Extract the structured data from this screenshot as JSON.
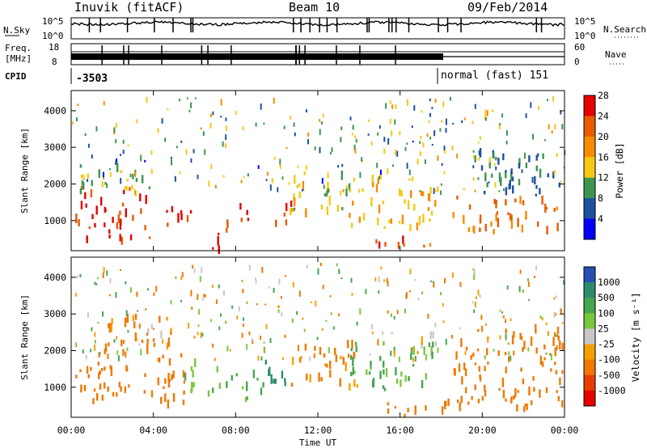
{
  "header": {
    "title": "Inuvik (fitACF)",
    "beam": "Beam 10",
    "date": "09/Feb/2014"
  },
  "top_panels": {
    "nsky_label": "N.Sky",
    "nsearch_label": "N.Search",
    "noise_ticks_left": [
      "10^5",
      "10^0"
    ],
    "noise_ticks_right": [
      "10^5",
      "10^0"
    ],
    "freq_label_1": "Freq.",
    "freq_label_2": "[MHz]",
    "freq_ticks": [
      "18",
      "8"
    ],
    "nave_label": "Nave",
    "nave_ticks": [
      "60",
      "0"
    ],
    "cpid_label": "CPID",
    "cpid_value_1": "-3503",
    "cpid_value_2": "normal (fast) 151"
  },
  "x_axis": {
    "label": "Time UT",
    "ticks": [
      "00:00",
      "04:00",
      "08:00",
      "12:00",
      "16:00",
      "20:00",
      "00:00"
    ]
  },
  "power_panel": {
    "ylabel": "Slant Range [km]",
    "yticks": [
      "1000",
      "2000",
      "3000",
      "4000"
    ],
    "colorbar_label": "Power [dB]",
    "colorbar_ticks": [
      "4",
      "8",
      "12",
      "16",
      "20",
      "24",
      "28"
    ],
    "colors": [
      "#0000ff",
      "#1e50a0",
      "#3c9650",
      "#f5c814",
      "#f58c00",
      "#e85a00",
      "#e60000"
    ]
  },
  "velocity_panel": {
    "ylabel": "Slant Range [km]",
    "yticks": [
      "1000",
      "2000",
      "3000",
      "4000"
    ],
    "colorbar_label": "Velocity [m s⁻¹]",
    "colorbar_ticks": [
      "1000",
      "500",
      "100",
      "25",
      "-25",
      "-100",
      "-500",
      "-1000"
    ],
    "colors": [
      "#2850b4",
      "#2e8c6e",
      "#46a550",
      "#78c83c",
      "#c8c8c8",
      "#f5a000",
      "#f07800",
      "#e83c00",
      "#e60000"
    ]
  },
  "chart_data": {
    "type": "heatmap",
    "title": "Inuvik (fitACF)",
    "subtitle": "Beam 10",
    "xlabel": "Time UT",
    "ylabel": "Slant Range [km]",
    "xlim": [
      0,
      24
    ],
    "ylim": [
      180,
      4550
    ],
    "x_ticks": [
      "00:00",
      "04:00",
      "08:00",
      "12:00",
      "16:00",
      "20:00",
      "00:00"
    ],
    "y_ticks": [
      1000,
      2000,
      3000,
      4000
    ],
    "power_colorbar": {
      "label": "Power [dB]",
      "ticks": [
        4,
        8,
        12,
        16,
        20,
        24,
        28
      ]
    },
    "velocity_colorbar": {
      "label": "Velocity [m s⁻¹]",
      "ticks": [
        1000,
        500,
        100,
        25,
        -25,
        -100,
        -500,
        -1000
      ]
    },
    "power_regions": [
      {
        "t0": 0.2,
        "t1": 3.8,
        "r0": 450,
        "r1": 1900,
        "p": 26
      },
      {
        "t0": 0.2,
        "t1": 3.8,
        "r0": 1800,
        "r1": 2500,
        "p": 14
      },
      {
        "t0": 4.5,
        "t1": 5.8,
        "r0": 600,
        "r1": 1500,
        "p": 27
      },
      {
        "t0": 6.0,
        "t1": 7.2,
        "r0": 200,
        "r1": 700,
        "p": 27
      },
      {
        "t0": 7.5,
        "t1": 8.8,
        "r0": 600,
        "r1": 1400,
        "p": 27
      },
      {
        "t0": 9.3,
        "t1": 10.8,
        "r0": 900,
        "r1": 1500,
        "p": 25
      },
      {
        "t0": 10.5,
        "t1": 13.5,
        "r0": 1200,
        "r1": 2300,
        "p": 16
      },
      {
        "t0": 13.5,
        "t1": 17.8,
        "r0": 800,
        "r1": 2200,
        "p": 18
      },
      {
        "t0": 14.8,
        "t1": 19.0,
        "r0": 220,
        "r1": 500,
        "p": 25
      },
      {
        "t0": 18.5,
        "t1": 23.9,
        "r0": 700,
        "r1": 1700,
        "p": 22
      },
      {
        "t0": 19.5,
        "t1": 23.9,
        "r0": 1600,
        "r1": 2900,
        "p": 10
      }
    ],
    "velocity_regions": [
      {
        "t0": 0.2,
        "t1": 5.5,
        "r0": 500,
        "r1": 1900,
        "v": -150
      },
      {
        "t0": 1.5,
        "t1": 5.0,
        "r0": 1900,
        "r1": 3000,
        "v": -120
      },
      {
        "t0": 3.0,
        "t1": 4.5,
        "r0": 2400,
        "r1": 2700,
        "v": 0
      },
      {
        "t0": 5.5,
        "t1": 7.2,
        "r0": 800,
        "r1": 1700,
        "v": 80
      },
      {
        "t0": 7.5,
        "t1": 9.5,
        "r0": 600,
        "r1": 1400,
        "v": 120
      },
      {
        "t0": 9.0,
        "t1": 10.5,
        "r0": 900,
        "r1": 1700,
        "v": 600
      },
      {
        "t0": 10.5,
        "t1": 14.0,
        "r0": 1000,
        "r1": 2200,
        "v": -120
      },
      {
        "t0": 13.5,
        "t1": 17.8,
        "r0": 900,
        "r1": 2200,
        "v": 110
      },
      {
        "t0": 14.8,
        "t1": 19.0,
        "r0": 220,
        "r1": 600,
        "v": -150
      },
      {
        "t0": 16.5,
        "t1": 17.8,
        "r0": 2000,
        "r1": 2500,
        "v": 0
      },
      {
        "t0": 18.5,
        "t1": 23.9,
        "r0": 400,
        "r1": 2600,
        "v": -200
      }
    ]
  }
}
